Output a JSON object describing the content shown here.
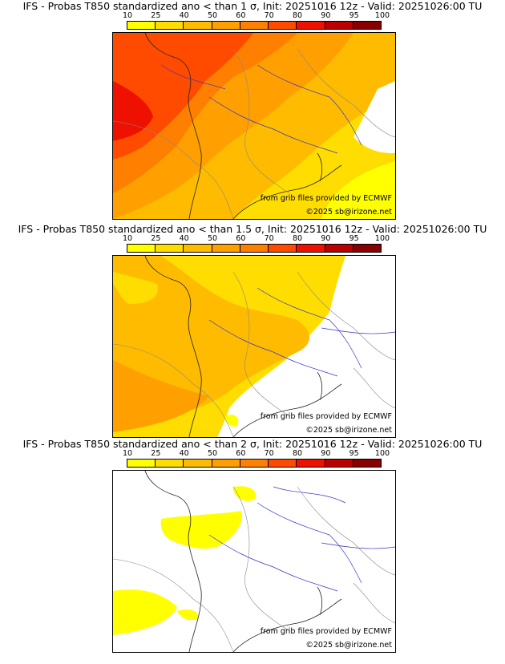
{
  "legend": {
    "ticks": [
      "10",
      "25",
      "40",
      "50",
      "60",
      "70",
      "80",
      "90",
      "95",
      "100"
    ],
    "colors": [
      "#ffff00",
      "#ffdd00",
      "#ffbb00",
      "#ff9f00",
      "#ff7f00",
      "#ff4b00",
      "#ee1100",
      "#bb0000",
      "#880000"
    ]
  },
  "credits": {
    "source": "from grib files provided by ECMWF",
    "copyright": "©2025 sb@irizone.net"
  },
  "panels": [
    {
      "title": "IFS - Probas T850  standardized ano < than 1 σ, Init: 20251016 12z - Valid: 20251026:00 TU",
      "threshold": "1 σ"
    },
    {
      "title": "IFS - Probas T850  standardized ano < than 1.5 σ, Init: 20251016 12z - Valid: 20251026:00 TU",
      "threshold": "1.5 σ"
    },
    {
      "title": "IFS - Probas T850  standardized ano < than 2 σ, Init: 20251016 12z - Valid: 20251026:00 TU",
      "threshold": "2 σ"
    }
  ]
}
